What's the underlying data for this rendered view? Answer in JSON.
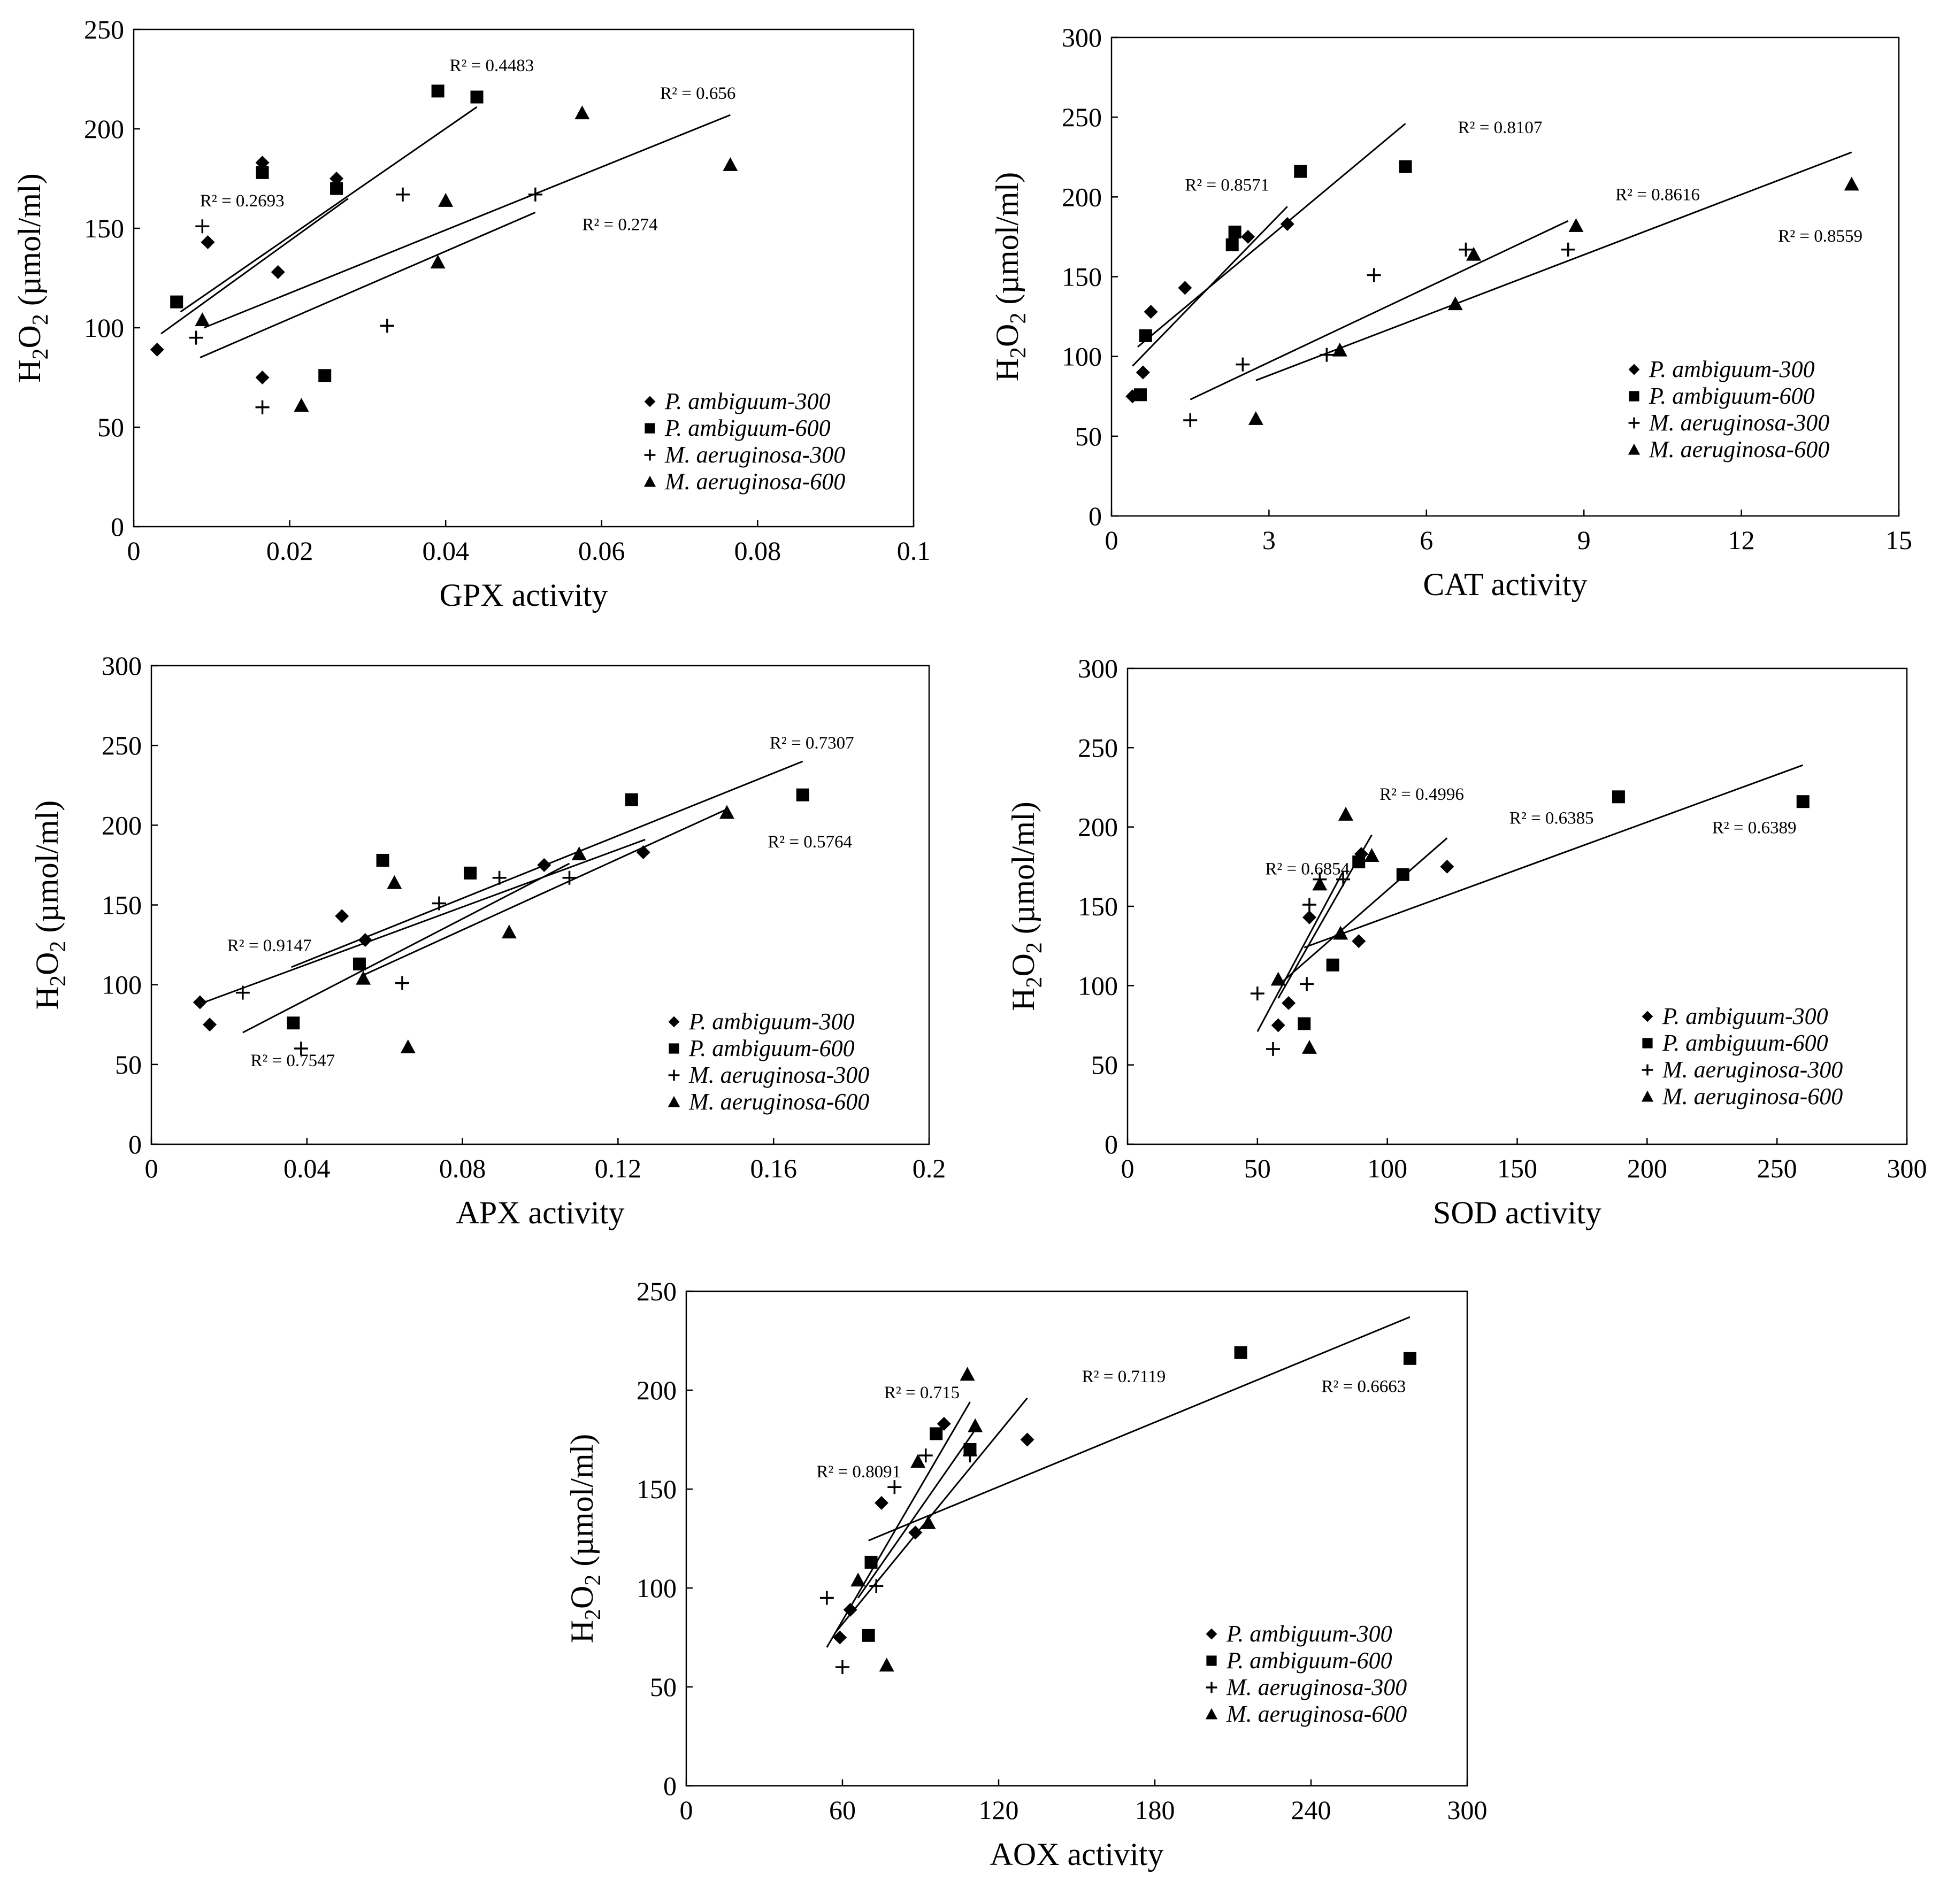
{
  "chart_data": [
    {
      "type": "scatter",
      "xlabel": "GPX activity",
      "ylabel": "H2O2 (µmol/ml)",
      "xlim": [
        0,
        0.1
      ],
      "ylim": [
        0,
        250
      ],
      "xticks": [
        0,
        0.02,
        0.04,
        0.06,
        0.08,
        0.1
      ],
      "yticks": [
        0,
        50,
        100,
        150,
        200,
        250
      ],
      "x_tick_labels": [
        "0",
        "0.02",
        "0.04",
        "0.06",
        "0.08",
        "0.1"
      ],
      "y_tick_labels": [
        "0",
        "50",
        "100",
        "150",
        "200",
        "250"
      ],
      "legend_position": "bottom-right",
      "series": [
        {
          "name": "P. ambiguum-300",
          "marker": "diamond",
          "points": [
            [
              0.003,
              89
            ],
            [
              0.0095,
              143
            ],
            [
              0.0165,
              75
            ],
            [
              0.0165,
              183
            ],
            [
              0.0185,
              128
            ],
            [
              0.026,
              175
            ]
          ],
          "trendline": [
            [
              0.0035,
              97
            ],
            [
              0.0275,
              165
            ]
          ],
          "r2": "R² = 0.2693",
          "r2_at": [
            0.0085,
            161
          ]
        },
        {
          "name": "P. ambiguum-600",
          "marker": "square",
          "points": [
            [
              0.0055,
              113
            ],
            [
              0.0165,
              178
            ],
            [
              0.0245,
              76
            ],
            [
              0.026,
              170
            ],
            [
              0.039,
              219
            ],
            [
              0.044,
              216
            ]
          ],
          "trendline": [
            [
              0.006,
              108
            ],
            [
              0.044,
              211
            ]
          ],
          "r2": "R² = 0.4483",
          "r2_at": [
            0.0405,
            229
          ]
        },
        {
          "name": "M. aeruginosa-300",
          "marker": "plus",
          "points": [
            [
              0.008,
              95
            ],
            [
              0.0088,
              151
            ],
            [
              0.0165,
              60
            ],
            [
              0.0325,
              101
            ],
            [
              0.0345,
              167
            ],
            [
              0.0515,
              167
            ]
          ],
          "trendline": [
            [
              0.0085,
              85
            ],
            [
              0.0515,
              158
            ]
          ],
          "r2": "R² = 0.274",
          "r2_at": [
            0.0575,
            149
          ]
        },
        {
          "name": "M. aeruginosa-600",
          "marker": "triangle",
          "points": [
            [
              0.0088,
              104
            ],
            [
              0.0215,
              61
            ],
            [
              0.039,
              133
            ],
            [
              0.04,
              164
            ],
            [
              0.0575,
              208
            ],
            [
              0.0765,
              182
            ]
          ],
          "trendline": [
            [
              0.009,
              100
            ],
            [
              0.0765,
              207
            ]
          ],
          "r2": "R² = 0.656",
          "r2_at": [
            0.0675,
            215
          ]
        }
      ]
    },
    {
      "type": "scatter",
      "xlabel": "CAT activity",
      "ylabel": "H2O2 (µmol/ml)",
      "xlim": [
        0,
        15
      ],
      "ylim": [
        0,
        300
      ],
      "xticks": [
        0,
        3,
        6,
        9,
        12,
        15
      ],
      "yticks": [
        0,
        50,
        100,
        150,
        200,
        250,
        300
      ],
      "x_tick_labels": [
        "0",
        "3",
        "6",
        "9",
        "12",
        "15"
      ],
      "y_tick_labels": [
        "0",
        "50",
        "100",
        "150",
        "200",
        "250",
        "300"
      ],
      "legend_position": "bottom-right",
      "series": [
        {
          "name": "P. ambiguum-300",
          "marker": "diamond",
          "points": [
            [
              0.4,
              75
            ],
            [
              0.6,
              90
            ],
            [
              0.75,
              128
            ],
            [
              1.4,
              143
            ],
            [
              2.6,
              175
            ],
            [
              3.35,
              183
            ]
          ],
          "trendline": [
            [
              0.4,
              94
            ],
            [
              3.35,
              194
            ]
          ],
          "r2": "R² = 0.8571",
          "r2_at": [
            1.4,
            204
          ]
        },
        {
          "name": "P. ambiguum-600",
          "marker": "square",
          "points": [
            [
              0.55,
              76
            ],
            [
              0.65,
              113
            ],
            [
              2.3,
              170
            ],
            [
              2.35,
              178
            ],
            [
              3.6,
              216
            ],
            [
              5.6,
              219
            ]
          ],
          "trendline": [
            [
              0.5,
              106
            ],
            [
              5.6,
              246
            ]
          ],
          "r2": "R² = 0.8107",
          "r2_at": [
            6.6,
            240
          ]
        },
        {
          "name": "M. aeruginosa-300",
          "marker": "plus",
          "points": [
            [
              1.5,
              60
            ],
            [
              2.5,
              95
            ],
            [
              4.1,
              101
            ],
            [
              5,
              151
            ],
            [
              6.75,
              167
            ],
            [
              8.7,
              167
            ]
          ],
          "trendline": [
            [
              1.5,
              73
            ],
            [
              8.7,
              185
            ]
          ],
          "r2": "R² = 0.8616",
          "r2_at": [
            9.6,
            198
          ]
        },
        {
          "name": "M. aeruginosa-600",
          "marker": "triangle",
          "points": [
            [
              2.75,
              61
            ],
            [
              4.35,
              104
            ],
            [
              6.55,
              133
            ],
            [
              6.9,
              164
            ],
            [
              8.85,
              182
            ],
            [
              14.1,
              208
            ]
          ],
          "trendline": [
            [
              2.75,
              85
            ],
            [
              14.1,
              228
            ]
          ],
          "r2": "R² = 0.8559",
          "r2_at": [
            12.7,
            172
          ]
        }
      ]
    },
    {
      "type": "scatter",
      "xlabel": "APX activity",
      "ylabel": "H2O2 (µmol/ml)",
      "xlim": [
        0,
        0.2
      ],
      "ylim": [
        0,
        300
      ],
      "xticks": [
        0,
        0.04,
        0.08,
        0.12,
        0.16,
        0.2
      ],
      "yticks": [
        0,
        50,
        100,
        150,
        200,
        250,
        300
      ],
      "x_tick_labels": [
        "0",
        "0.04",
        "0.08",
        "0.12",
        "0.16",
        "0.2"
      ],
      "y_tick_labels": [
        "0",
        "50",
        "100",
        "150",
        "200",
        "250",
        "300"
      ],
      "legend_position": "bottom-right",
      "series": [
        {
          "name": "P. ambiguum-300",
          "marker": "diamond",
          "points": [
            [
              0.0125,
              89
            ],
            [
              0.015,
              75
            ],
            [
              0.049,
              143
            ],
            [
              0.055,
              128
            ],
            [
              0.101,
              175
            ],
            [
              0.1265,
              183
            ]
          ],
          "trendline": [
            [
              0.0125,
              88
            ],
            [
              0.127,
              191
            ]
          ],
          "r2": "R² = 0.9147",
          "r2_at": [
            0.0195,
            121
          ]
        },
        {
          "name": "P. ambiguum-600",
          "marker": "square",
          "points": [
            [
              0.0365,
              76
            ],
            [
              0.0535,
              113
            ],
            [
              0.0595,
              178
            ],
            [
              0.082,
              170
            ],
            [
              0.1235,
              216
            ],
            [
              0.1675,
              219
            ]
          ],
          "trendline": [
            [
              0.036,
              111
            ],
            [
              0.1675,
              240
            ]
          ],
          "r2": "R² = 0.7307",
          "r2_at": [
            0.159,
            248
          ]
        },
        {
          "name": "M. aeruginosa-300",
          "marker": "plus",
          "points": [
            [
              0.0235,
              95
            ],
            [
              0.0385,
              60
            ],
            [
              0.0645,
              101
            ],
            [
              0.074,
              151
            ],
            [
              0.0895,
              167
            ],
            [
              0.1075,
              167
            ]
          ],
          "trendline": [
            [
              0.0235,
              70
            ],
            [
              0.1075,
              176
            ]
          ],
          "r2": "R² = 0.7547",
          "r2_at": [
            0.0255,
            49
          ]
        },
        {
          "name": "M. aeruginosa-600",
          "marker": "triangle",
          "points": [
            [
              0.0545,
              104
            ],
            [
              0.0625,
              164
            ],
            [
              0.066,
              61
            ],
            [
              0.092,
              133
            ],
            [
              0.11,
              182
            ],
            [
              0.148,
              208
            ]
          ],
          "trendline": [
            [
              0.0545,
              106
            ],
            [
              0.148,
              210
            ]
          ],
          "r2": "R² = 0.5764",
          "r2_at": [
            0.1585,
            186
          ]
        }
      ]
    },
    {
      "type": "scatter",
      "xlabel": "SOD activity",
      "ylabel": "H2O2 (µmol/ml)",
      "xlim": [
        0,
        300
      ],
      "ylim": [
        0,
        300
      ],
      "xticks": [
        0,
        50,
        100,
        150,
        200,
        250,
        300
      ],
      "yticks": [
        0,
        50,
        100,
        150,
        200,
        250,
        300
      ],
      "x_tick_labels": [
        "0",
        "50",
        "100",
        "150",
        "200",
        "250",
        "300"
      ],
      "y_tick_labels": [
        "0",
        "50",
        "100",
        "150",
        "200",
        "250",
        "300"
      ],
      "legend_position": "bottom-right",
      "series": [
        {
          "name": "P. ambiguum-300",
          "marker": "diamond",
          "points": [
            [
              58,
              75
            ],
            [
              62,
              89
            ],
            [
              70,
              143
            ],
            [
              89,
              128
            ],
            [
              90,
              183
            ],
            [
              123,
              175
            ]
          ],
          "trendline": [
            [
              60,
              103
            ],
            [
              123,
              193
            ]
          ],
          "r2": "R² = 0.6385",
          "r2_at": [
            147,
            202
          ]
        },
        {
          "name": "P. ambiguum-600",
          "marker": "square",
          "points": [
            [
              68,
              76
            ],
            [
              79,
              113
            ],
            [
              89,
              178
            ],
            [
              106,
              170
            ],
            [
              189,
              219
            ],
            [
              260,
              216
            ]
          ],
          "trendline": [
            [
              68,
              124
            ],
            [
              260,
              239
            ]
          ],
          "r2": "R² = 0.6389",
          "r2_at": [
            225,
            196
          ]
        },
        {
          "name": "M. aeruginosa-300",
          "marker": "plus",
          "points": [
            [
              50,
              95
            ],
            [
              56,
              60
            ],
            [
              69,
              101
            ],
            [
              70,
              151
            ],
            [
              74,
              167
            ],
            [
              83,
              167
            ]
          ],
          "trendline": [
            [
              50,
              71
            ],
            [
              83,
              172
            ]
          ],
          "r2": "R² = 0.6854",
          "r2_at": [
            53,
            170
          ]
        },
        {
          "name": "M. aeruginosa-600",
          "marker": "triangle",
          "points": [
            [
              58,
              104
            ],
            [
              70,
              61
            ],
            [
              74,
              164
            ],
            [
              82,
              133
            ],
            [
              84,
              208
            ],
            [
              94,
              182
            ]
          ],
          "trendline": [
            [
              58,
              92
            ],
            [
              94,
              195
            ]
          ],
          "r2": "R² = 0.4996",
          "r2_at": [
            97,
            217
          ]
        }
      ]
    },
    {
      "type": "scatter",
      "xlabel": "AOX activity",
      "ylabel": "H2O2 (µmol/ml)",
      "xlim": [
        0,
        300
      ],
      "ylim": [
        0,
        250
      ],
      "xticks": [
        0,
        60,
        120,
        180,
        240,
        300
      ],
      "yticks": [
        0,
        50,
        100,
        150,
        200,
        250
      ],
      "x_tick_labels": [
        "0",
        "60",
        "120",
        "180",
        "240",
        "300"
      ],
      "y_tick_labels": [
        "0",
        "50",
        "100",
        "150",
        "200",
        "250"
      ],
      "legend_position": "bottom-right",
      "series": [
        {
          "name": "P. ambiguum-300",
          "marker": "diamond",
          "points": [
            [
              59,
              75
            ],
            [
              63,
              89
            ],
            [
              75,
              143
            ],
            [
              88,
              128
            ],
            [
              99,
              183
            ],
            [
              131,
              175
            ]
          ],
          "trendline": [
            [
              57,
              77
            ],
            [
              131,
              196
            ]
          ],
          "r2": "R² = 0.7119",
          "r2_at": [
            152,
            204
          ]
        },
        {
          "name": "P. ambiguum-600",
          "marker": "square",
          "points": [
            [
              70,
              76
            ],
            [
              71,
              113
            ],
            [
              96,
              178
            ],
            [
              109,
              170
            ],
            [
              213,
              219
            ],
            [
              278,
              216
            ]
          ],
          "trendline": [
            [
              70,
              124
            ],
            [
              278,
              237
            ]
          ],
          "r2": "R² = 0.6663",
          "r2_at": [
            244,
            199
          ]
        },
        {
          "name": "M. aeruginosa-300",
          "marker": "plus",
          "points": [
            [
              54,
              95
            ],
            [
              60,
              60
            ],
            [
              73,
              101
            ],
            [
              80,
              151
            ],
            [
              92,
              167
            ],
            [
              109,
              167
            ]
          ],
          "trendline": [
            [
              54,
              70
            ],
            [
              109,
              194
            ]
          ],
          "r2": "R² = 0.715",
          "r2_at": [
            76,
            196
          ]
        },
        {
          "name": "M. aeruginosa-600",
          "marker": "triangle",
          "points": [
            [
              66,
              104
            ],
            [
              77,
              61
            ],
            [
              89,
              164
            ],
            [
              93,
              133
            ],
            [
              108,
              208
            ],
            [
              111,
              182
            ]
          ],
          "trendline": [
            [
              66,
              95
            ],
            [
              111,
              180
            ]
          ],
          "r2": "R² = 0.8091",
          "r2_at": [
            50,
            156
          ]
        }
      ]
    }
  ]
}
